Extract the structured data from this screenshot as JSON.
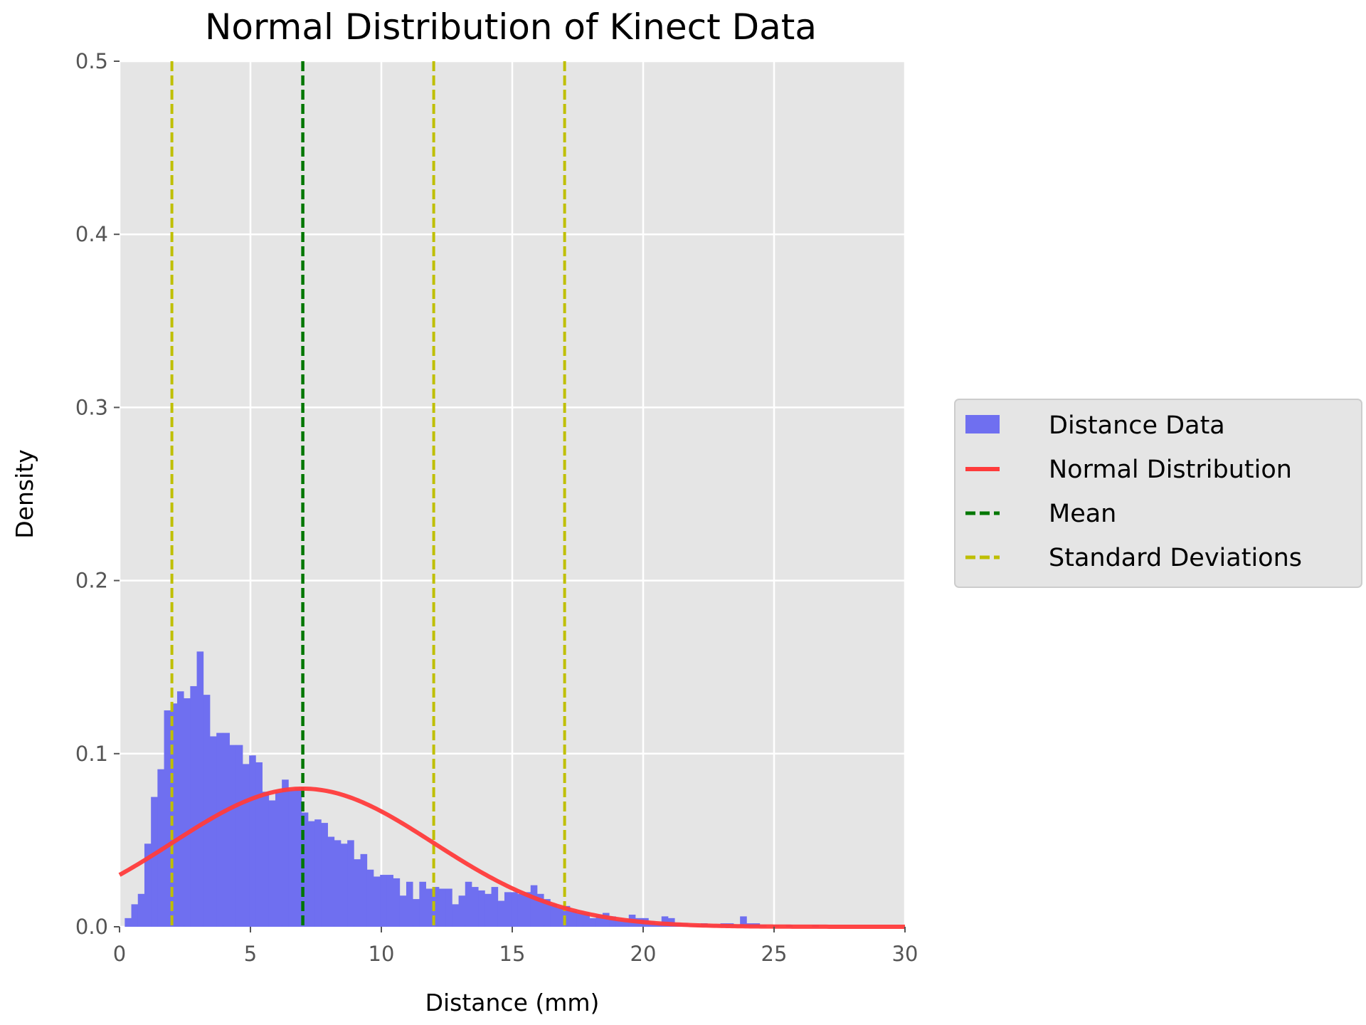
{
  "chart_data": {
    "type": "bar",
    "title": "Normal Distribution of Kinect Data",
    "xlabel": "Distance (mm)",
    "ylabel": "Density",
    "xlim": [
      0,
      30
    ],
    "ylim": [
      0,
      0.5
    ],
    "xticks": [
      "0",
      "5",
      "10",
      "15",
      "20",
      "25",
      "30"
    ],
    "yticks": [
      "0.0",
      "0.1",
      "0.2",
      "0.3",
      "0.4",
      "0.5"
    ],
    "grid": true,
    "legend_position": "right",
    "histogram": {
      "name": "Distance Data",
      "color": "#6f6ff0",
      "bin_width": 0.25,
      "x_start": 0.2,
      "values": [
        0.005,
        0.013,
        0.019,
        0.048,
        0.075,
        0.091,
        0.125,
        0.129,
        0.136,
        0.132,
        0.139,
        0.159,
        0.134,
        0.11,
        0.112,
        0.112,
        0.105,
        0.105,
        0.094,
        0.099,
        0.095,
        0.078,
        0.073,
        0.078,
        0.085,
        0.079,
        0.08,
        0.066,
        0.061,
        0.062,
        0.06,
        0.052,
        0.05,
        0.048,
        0.05,
        0.039,
        0.042,
        0.033,
        0.029,
        0.03,
        0.03,
        0.028,
        0.018,
        0.026,
        0.016,
        0.026,
        0.022,
        0.023,
        0.022,
        0.022,
        0.013,
        0.018,
        0.026,
        0.023,
        0.021,
        0.019,
        0.023,
        0.015,
        0.02,
        0.02,
        0.019,
        0.02,
        0.024,
        0.019,
        0.016,
        0.013,
        0.011,
        0.012,
        0.009,
        0.008,
        0.008,
        0.005,
        0.007,
        0.008,
        0.006,
        0.004,
        0.004,
        0.007,
        0.005,
        0.005,
        0.003,
        0.002,
        0.006,
        0.005,
        0.002,
        0.002,
        0.001,
        0.001,
        0.002,
        0.001,
        0.001,
        0.002,
        0.002,
        0.001,
        0.006,
        0.002,
        0.002,
        0.001,
        0.0,
        0.001,
        0.0,
        0.001,
        0.0,
        0.0,
        0.0,
        0.001
      ]
    },
    "normal_curve": {
      "name": "Normal Distribution",
      "color": "#ff3b3b",
      "mean": 7.0,
      "std": 5.0
    },
    "mean_line": {
      "name": "Mean",
      "x": 7.0,
      "color": "#007700"
    },
    "std_lines": {
      "name": "Standard Deviations",
      "x": [
        2.0,
        12.0,
        17.0
      ],
      "color": "#bfbf00"
    }
  }
}
